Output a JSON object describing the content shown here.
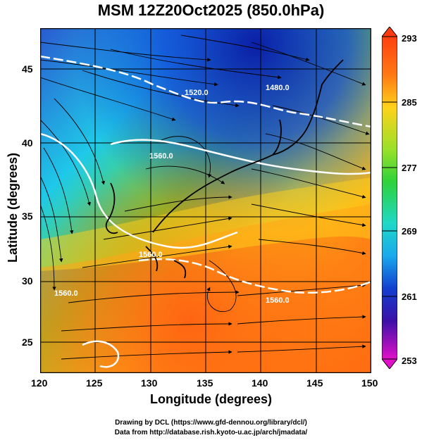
{
  "title": "MSM 12Z20Oct2025 (850.0hPa)",
  "xlabel": "Longitude (degrees)",
  "ylabel": "Latitude  (degrees)",
  "x_ticks": [
    "120",
    "125",
    "130",
    "135",
    "140",
    "145",
    "150"
  ],
  "y_ticks": [
    "25",
    "30",
    "35",
    "40",
    "45"
  ],
  "colorbar_ticks": [
    "293",
    "285",
    "277",
    "269",
    "261",
    "253"
  ],
  "contour_labels": [
    "1520.0",
    "1480.0",
    "1560.0",
    "1560.0",
    "1560.0",
    "1560.0"
  ],
  "credit_line1": "Drawing by DCL (https://www.gfd-dennou.org/library/dcl/)",
  "credit_line2": "Data from http://database.rish.kyoto-u.ac.jp/arch/jmadata/",
  "colors": {
    "cold": "#0b2fb3",
    "cool": "#10c7e6",
    "mid": "#33d43a",
    "warm": "#f7ea1c",
    "hot": "#ff6a12",
    "contour": "#ffffff",
    "streamline": "#000000"
  }
}
